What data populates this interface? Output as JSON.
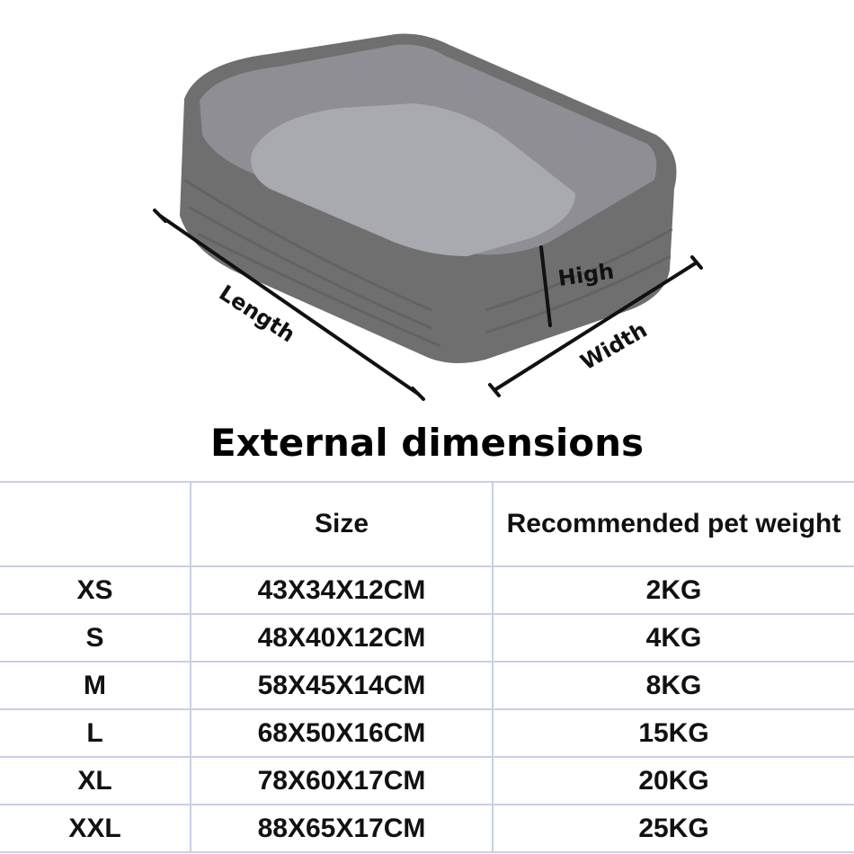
{
  "illustration": {
    "labels": {
      "length": "Length",
      "width": "Width",
      "high": "High"
    },
    "colors": {
      "bed_outer": "#6f6f6f",
      "bed_inner": "#9a9aa0",
      "cushion": "#a9a9b0"
    }
  },
  "title": "External dimensions",
  "table": {
    "headers": [
      "",
      "Size",
      "Recommended pet weight"
    ],
    "rows": [
      {
        "size": "XS",
        "dimensions": "43X34X12CM",
        "weight": "2KG"
      },
      {
        "size": "S",
        "dimensions": "48X40X12CM",
        "weight": "4KG"
      },
      {
        "size": "M",
        "dimensions": "58X45X14CM",
        "weight": "8KG"
      },
      {
        "size": "L",
        "dimensions": "68X50X16CM",
        "weight": "15KG"
      },
      {
        "size": "XL",
        "dimensions": "78X60X17CM",
        "weight": "20KG"
      },
      {
        "size": "XXL",
        "dimensions": "88X65X17CM",
        "weight": "25KG"
      }
    ]
  }
}
